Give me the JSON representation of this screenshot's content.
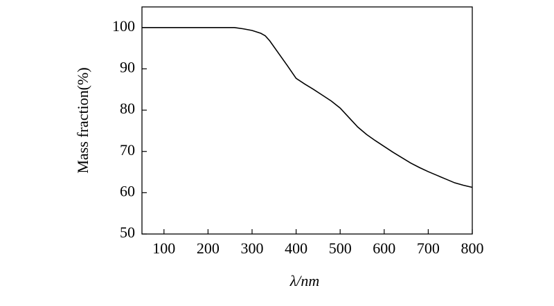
{
  "chart_data": {
    "type": "line",
    "x_label": "λ/nm",
    "y_label": "Mass fraction(%)",
    "x": [
      50,
      100,
      200,
      260,
      280,
      300,
      320,
      330,
      340,
      360,
      380,
      400,
      420,
      440,
      460,
      480,
      500,
      520,
      540,
      560,
      580,
      600,
      620,
      640,
      660,
      680,
      700,
      720,
      740,
      760,
      780,
      800
    ],
    "series": [
      {
        "color": "#000000",
        "values": [
          100,
          100,
          100,
          100,
          99.7,
          99.3,
          98.6,
          98,
          96.8,
          93.8,
          90.8,
          87.7,
          86.3,
          85,
          83.6,
          82.2,
          80.5,
          78.2,
          75.9,
          74.1,
          72.6,
          71.2,
          69.8,
          68.5,
          67.2,
          66.1,
          65.1,
          64.2,
          63.3,
          62.4,
          61.8,
          61.3
        ]
      }
    ],
    "xlim": [
      50,
      800
    ],
    "ylim": [
      50,
      105
    ],
    "xticks": [
      100,
      200,
      300,
      400,
      500,
      600,
      700,
      800
    ],
    "yticks": [
      50,
      60,
      70,
      80,
      90,
      100
    ]
  }
}
